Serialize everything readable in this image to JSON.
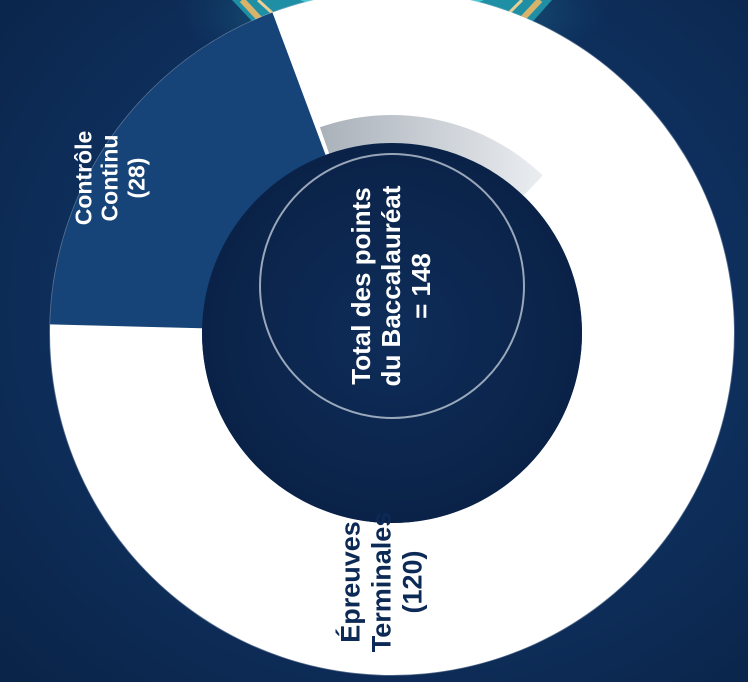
{
  "chart_data": {
    "type": "pie",
    "variant": "donut",
    "orientation": "rotated-90-ccw",
    "slices": [
      {
        "id": "controle-continu",
        "label_line1": "Contrôle",
        "label_line2": "Continu",
        "value_text": "(28)",
        "value": 28,
        "color": "#174478"
      },
      {
        "id": "epreuves-terminales",
        "label_line1": "Épreuves",
        "label_line2": "Terminales",
        "value_text": "(120)",
        "value": 120,
        "color": "#ffffff"
      }
    ],
    "center": {
      "line1": "Total des points",
      "line2": "du Baccalauréat",
      "line3": "= 148",
      "total": 148
    }
  },
  "colors": {
    "background": "#0f3262",
    "hole": "#0b2449",
    "accent_gold": "#d9b36a",
    "accent_teal": "#3fd0d6",
    "ring_outline": "#b9c6d6"
  }
}
